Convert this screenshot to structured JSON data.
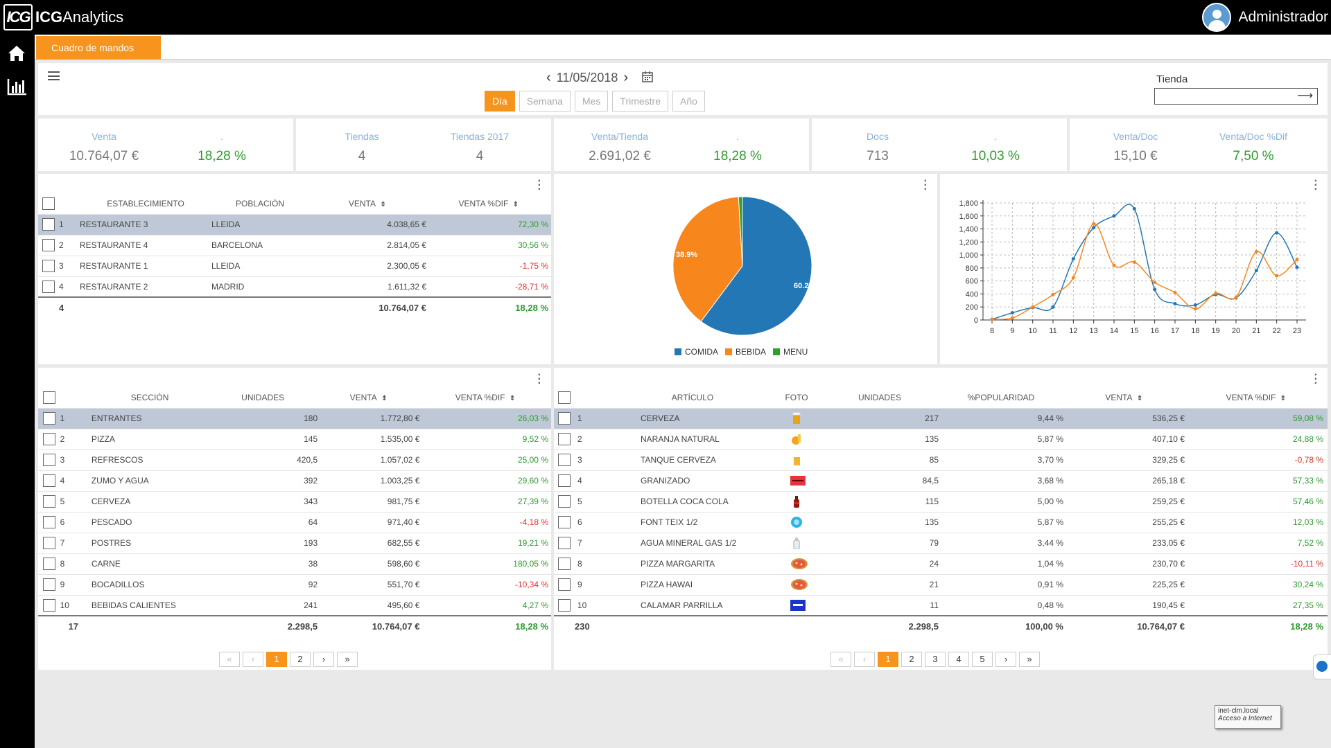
{
  "app": {
    "logo_mark": "ICG",
    "logo_bold": "ICG",
    "logo_rest": "Analytics",
    "user": "Administrador"
  },
  "sidebar": {
    "items": [
      {
        "icon": "home-icon"
      },
      {
        "icon": "bar-chart-icon"
      }
    ]
  },
  "tabs": {
    "active": "Cuadro de mandos"
  },
  "toolbar": {
    "date": "11/05/2018",
    "periods": [
      "Día",
      "Semana",
      "Mes",
      "Trimestre",
      "Año"
    ],
    "active_period": "Día",
    "store_label": "Tienda",
    "store_value": ""
  },
  "kpis": [
    {
      "title": "Venta",
      "value": "10.764,07 €",
      "title2": ".",
      "value2": "18,28 %"
    },
    {
      "title": "Tiendas",
      "value": "4",
      "title2": "Tiendas 2017",
      "value2": "4"
    },
    {
      "title": "Venta/Tienda",
      "value": "2.691,02 €",
      "title2": ".",
      "value2": "18,28 %"
    },
    {
      "title": "Docs",
      "value": "713",
      "title2": ".",
      "value2": "10,03 %"
    },
    {
      "title": "Venta/Doc",
      "value": "15,10 €",
      "title2": "Venta/Doc %Dif",
      "value2": "7,50 %"
    }
  ],
  "stores": {
    "headers": [
      "ESTABLECIMIENTO",
      "POBLACIÓN",
      "VENTA",
      "VENTA %DIF"
    ],
    "rows": [
      {
        "n": "1",
        "name": "RESTAURANTE 3",
        "city": "LLEIDA",
        "sales": "4.038,65 €",
        "diff": "72,30 %"
      },
      {
        "n": "2",
        "name": "RESTAURANTE 4",
        "city": "BARCELONA",
        "sales": "2.814,05 €",
        "diff": "30,56 %"
      },
      {
        "n": "3",
        "name": "RESTAURANTE 1",
        "city": "LLEIDA",
        "sales": "2.300,05 €",
        "diff": "-1,75 %"
      },
      {
        "n": "4",
        "name": "RESTAURANTE 2",
        "city": "MADRID",
        "sales": "1.611,32 €",
        "diff": "-28,71 %"
      }
    ],
    "total": {
      "count": "4",
      "sales": "10.764,07 €",
      "diff": "18,28 %"
    }
  },
  "pie": {
    "legend": [
      "COMIDA",
      "BEBIDA",
      "MENU"
    ],
    "label_comida": "60.2%",
    "label_bebida": "38.9%",
    "colors": {
      "comida": "#2377b4",
      "bebida": "#f7861c",
      "menu": "#2ca02c"
    }
  },
  "chart_data": [
    {
      "type": "pie",
      "categories": [
        "COMIDA",
        "BEBIDA",
        "MENU"
      ],
      "values": [
        60.2,
        38.9,
        0.9
      ]
    },
    {
      "type": "line",
      "x": [
        8,
        9,
        10,
        11,
        12,
        13,
        14,
        15,
        16,
        17,
        18,
        19,
        20,
        21,
        22,
        23
      ],
      "series": [
        {
          "values": [
            10,
            110,
            190,
            200,
            940,
            1420,
            1600,
            1710,
            470,
            250,
            230,
            390,
            340,
            760,
            1340,
            810
          ],
          "color": "#2377b4"
        },
        {
          "values": [
            10,
            30,
            200,
            390,
            650,
            1480,
            840,
            890,
            580,
            420,
            170,
            410,
            350,
            1050,
            680,
            930
          ],
          "color": "#f7861c"
        }
      ],
      "x_ticks": [
        "8",
        "9",
        "10",
        "11",
        "12",
        "13",
        "14",
        "15",
        "16",
        "17",
        "18",
        "19",
        "20",
        "21",
        "22",
        "23"
      ],
      "y_ticks": [
        "0",
        "200",
        "400",
        "600",
        "800",
        "1,000",
        "1,200",
        "1,400",
        "1,600",
        "1,800"
      ],
      "ylim": [
        0,
        1800
      ],
      "grid": true
    }
  ],
  "sections": {
    "headers": [
      "SECCIÓN",
      "UNIDADES",
      "VENTA",
      "VENTA %DIF"
    ],
    "rows": [
      {
        "n": "1",
        "name": "ENTRANTES",
        "units": "180",
        "sales": "1.772,80 €",
        "diff": "26,03 %"
      },
      {
        "n": "2",
        "name": "PIZZA",
        "units": "145",
        "sales": "1.535,00 €",
        "diff": "9,52 %"
      },
      {
        "n": "3",
        "name": "REFRESCOS",
        "units": "420,5",
        "sales": "1.057,02 €",
        "diff": "25,00 %"
      },
      {
        "n": "4",
        "name": "ZUMO Y AGUA",
        "units": "392",
        "sales": "1.003,25 €",
        "diff": "29,60 %"
      },
      {
        "n": "5",
        "name": "CERVEZA",
        "units": "343",
        "sales": "981,75 €",
        "diff": "27,39 %"
      },
      {
        "n": "6",
        "name": "PESCADO",
        "units": "64",
        "sales": "971,40 €",
        "diff": "-4,18 %"
      },
      {
        "n": "7",
        "name": "POSTRES",
        "units": "193",
        "sales": "682,55 €",
        "diff": "19,21 %"
      },
      {
        "n": "8",
        "name": "CARNE",
        "units": "38",
        "sales": "598,60 €",
        "diff": "180,05 %"
      },
      {
        "n": "9",
        "name": "BOCADILLOS",
        "units": "92",
        "sales": "551,70 €",
        "diff": "-10,34 %"
      },
      {
        "n": "10",
        "name": "BEBIDAS CALIENTES",
        "units": "241",
        "sales": "495,60 €",
        "diff": "4,27 %"
      }
    ],
    "total": {
      "count": "17",
      "units": "2.298,5",
      "sales": "10.764,07 €",
      "diff": "18,28 %"
    },
    "pager": [
      "«",
      "‹",
      "1",
      "2",
      "›",
      "»"
    ]
  },
  "articles": {
    "headers": [
      "ARTÍCULO",
      "FOTO",
      "UNIDADES",
      "%POPULARIDAD",
      "VENTA",
      "VENTA %DIF"
    ],
    "rows": [
      {
        "n": "1",
        "name": "CERVEZA",
        "photo": "beer",
        "units": "217",
        "pop": "9,44 %",
        "sales": "536,25 €",
        "diff": "59,08 %"
      },
      {
        "n": "2",
        "name": "NARANJA NATURAL",
        "photo": "orange",
        "units": "135",
        "pop": "5,87 %",
        "sales": "407,10 €",
        "diff": "24,88 %"
      },
      {
        "n": "3",
        "name": "TANQUE CERVEZA",
        "photo": "beer-mug",
        "units": "85",
        "pop": "3,70 %",
        "sales": "329,25 €",
        "diff": "-0,78 %"
      },
      {
        "n": "4",
        "name": "GRANIZADO",
        "photo": "red-box",
        "units": "84,5",
        "pop": "3,68 %",
        "sales": "265,18 €",
        "diff": "57,33 %"
      },
      {
        "n": "5",
        "name": "BOTELLA COCA COLA",
        "photo": "cola-bottle",
        "units": "115",
        "pop": "5,00 %",
        "sales": "259,25 €",
        "diff": "57,46 %"
      },
      {
        "n": "6",
        "name": "FONT TEIX 1/2",
        "photo": "blue-round",
        "units": "135",
        "pop": "5,87 %",
        "sales": "255,25 €",
        "diff": "12,03 %"
      },
      {
        "n": "7",
        "name": "AGUA MINERAL GAS 1/2",
        "photo": "water-bottle",
        "units": "79",
        "pop": "3,44 %",
        "sales": "233,05 €",
        "diff": "7,52 %"
      },
      {
        "n": "8",
        "name": "PIZZA MARGARITA",
        "photo": "pizza",
        "units": "24",
        "pop": "1,04 %",
        "sales": "230,70 €",
        "diff": "-10,11 %"
      },
      {
        "n": "9",
        "name": "PIZZA HAWAI",
        "photo": "pizza",
        "units": "21",
        "pop": "0,91 %",
        "sales": "225,25 €",
        "diff": "30,24 %"
      },
      {
        "n": "10",
        "name": "CALAMAR PARRILLA",
        "photo": "blue-box",
        "units": "11",
        "pop": "0,48 %",
        "sales": "190,45 €",
        "diff": "27,35 %"
      }
    ],
    "total": {
      "count": "230",
      "units": "2.298,5",
      "pop": "100,00 %",
      "sales": "10.764,07 €",
      "diff": "18,28 %"
    },
    "pager": [
      "«",
      "‹",
      "1",
      "2",
      "3",
      "4",
      "5",
      "›",
      "»"
    ]
  },
  "tooltip": {
    "line1": "inet-clm.local",
    "line2": "Acceso a Internet"
  }
}
